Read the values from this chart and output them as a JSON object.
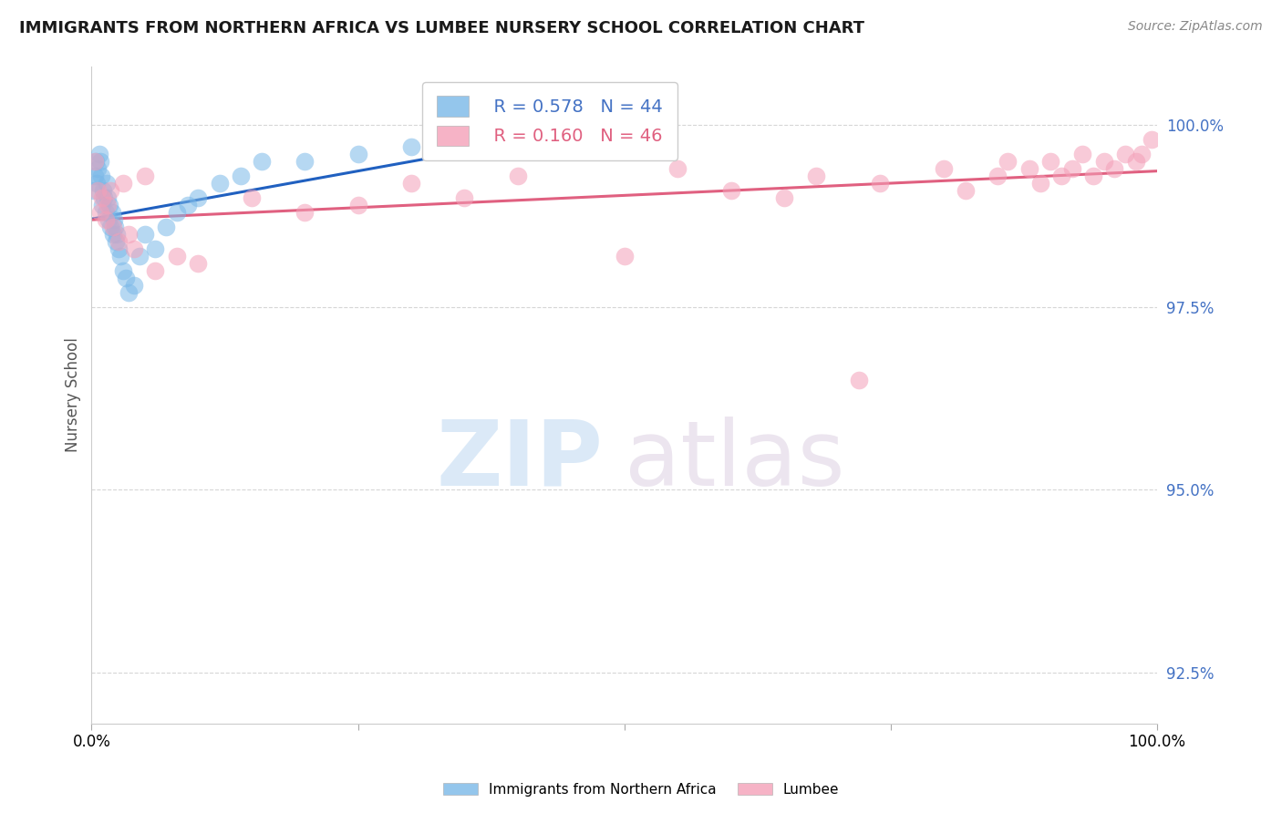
{
  "title": "IMMIGRANTS FROM NORTHERN AFRICA VS LUMBEE NURSERY SCHOOL CORRELATION CHART",
  "source_text": "Source: ZipAtlas.com",
  "ylabel": "Nursery School",
  "legend_label1": "Immigrants from Northern Africa",
  "legend_label2": "Lumbee",
  "R1": 0.578,
  "N1": 44,
  "R2": 0.16,
  "N2": 46,
  "xlim": [
    0.0,
    100.0
  ],
  "ylim": [
    91.8,
    100.8
  ],
  "yticks": [
    92.5,
    95.0,
    97.5,
    100.0
  ],
  "xticks": [
    0.0,
    25.0,
    50.0,
    75.0,
    100.0
  ],
  "xtick_labels": [
    "0.0%",
    "",
    "",
    "",
    "100.0%"
  ],
  "ytick_labels": [
    "92.5%",
    "95.0%",
    "97.5%",
    "100.0%"
  ],
  "color_blue": "#7ab8e8",
  "color_pink": "#f4a0b8",
  "color_blue_line": "#2060c0",
  "color_pink_line": "#e06080",
  "watermark_zip": "ZIP",
  "watermark_atlas": "atlas",
  "blue_x": [
    0.2,
    0.3,
    0.4,
    0.5,
    0.6,
    0.7,
    0.8,
    0.9,
    1.0,
    1.1,
    1.2,
    1.3,
    1.4,
    1.5,
    1.6,
    1.7,
    1.8,
    1.9,
    2.0,
    2.1,
    2.2,
    2.3,
    2.4,
    2.5,
    2.7,
    3.0,
    3.2,
    3.5,
    4.0,
    4.5,
    5.0,
    6.0,
    7.0,
    8.0,
    9.0,
    10.0,
    12.0,
    14.0,
    16.0,
    20.0,
    25.0,
    30.0,
    38.0,
    44.0
  ],
  "blue_y": [
    99.1,
    99.3,
    99.5,
    99.2,
    99.4,
    99.6,
    99.5,
    99.3,
    98.9,
    99.1,
    99.0,
    98.8,
    99.2,
    99.0,
    98.7,
    98.9,
    98.6,
    98.8,
    98.5,
    98.7,
    98.6,
    98.4,
    98.5,
    98.3,
    98.2,
    98.0,
    97.9,
    97.7,
    97.8,
    98.2,
    98.5,
    98.3,
    98.6,
    98.8,
    98.9,
    99.0,
    99.2,
    99.3,
    99.5,
    99.5,
    99.6,
    99.7,
    99.7,
    99.8
  ],
  "pink_x": [
    0.3,
    0.6,
    0.8,
    1.0,
    1.3,
    1.5,
    1.8,
    2.0,
    2.5,
    3.0,
    3.5,
    4.0,
    5.0,
    6.0,
    8.0,
    10.0,
    15.0,
    20.0,
    25.0,
    30.0,
    35.0,
    40.0,
    50.0,
    55.0,
    60.0,
    65.0,
    68.0,
    72.0,
    74.0,
    80.0,
    82.0,
    85.0,
    86.0,
    88.0,
    89.0,
    90.0,
    91.0,
    92.0,
    93.0,
    94.0,
    95.0,
    96.0,
    97.0,
    98.0,
    98.5,
    99.5
  ],
  "pink_y": [
    99.5,
    99.1,
    98.8,
    99.0,
    98.7,
    98.9,
    99.1,
    98.6,
    98.4,
    99.2,
    98.5,
    98.3,
    99.3,
    98.0,
    98.2,
    98.1,
    99.0,
    98.8,
    98.9,
    99.2,
    99.0,
    99.3,
    98.2,
    99.4,
    99.1,
    99.0,
    99.3,
    96.5,
    99.2,
    99.4,
    99.1,
    99.3,
    99.5,
    99.4,
    99.2,
    99.5,
    99.3,
    99.4,
    99.6,
    99.3,
    99.5,
    99.4,
    99.6,
    99.5,
    99.6,
    99.8
  ]
}
